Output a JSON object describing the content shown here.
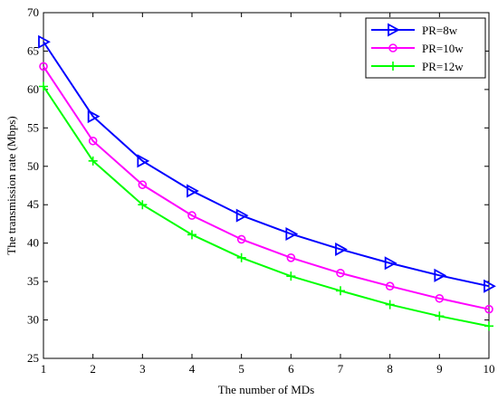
{
  "chart_data": {
    "type": "line",
    "title": "",
    "xlabel": "The number of MDs",
    "ylabel": "The transmission rate (Mbps)",
    "x": [
      1,
      2,
      3,
      4,
      5,
      6,
      7,
      8,
      9,
      10
    ],
    "xlim": [
      1,
      10
    ],
    "ylim": [
      25,
      70
    ],
    "xticks": [
      1,
      2,
      3,
      4,
      5,
      6,
      7,
      8,
      9,
      10
    ],
    "yticks": [
      25,
      30,
      35,
      40,
      45,
      50,
      55,
      60,
      65,
      70
    ],
    "grid": false,
    "legend_position": "top-right",
    "series": [
      {
        "name": "PR=8w",
        "color": "#0000ff",
        "marker": "triangle-right",
        "values": [
          66.2,
          56.5,
          50.7,
          46.8,
          43.6,
          41.2,
          39.2,
          37.4,
          35.8,
          34.4
        ]
      },
      {
        "name": "PR=10w",
        "color": "#ff00ff",
        "marker": "circle",
        "values": [
          63.0,
          53.3,
          47.6,
          43.6,
          40.5,
          38.1,
          36.1,
          34.4,
          32.8,
          31.4
        ]
      },
      {
        "name": "PR=12w",
        "color": "#00ff00",
        "marker": "plus",
        "values": [
          60.4,
          50.7,
          45.0,
          41.1,
          38.1,
          35.7,
          33.8,
          32.0,
          30.5,
          29.2
        ]
      }
    ]
  }
}
